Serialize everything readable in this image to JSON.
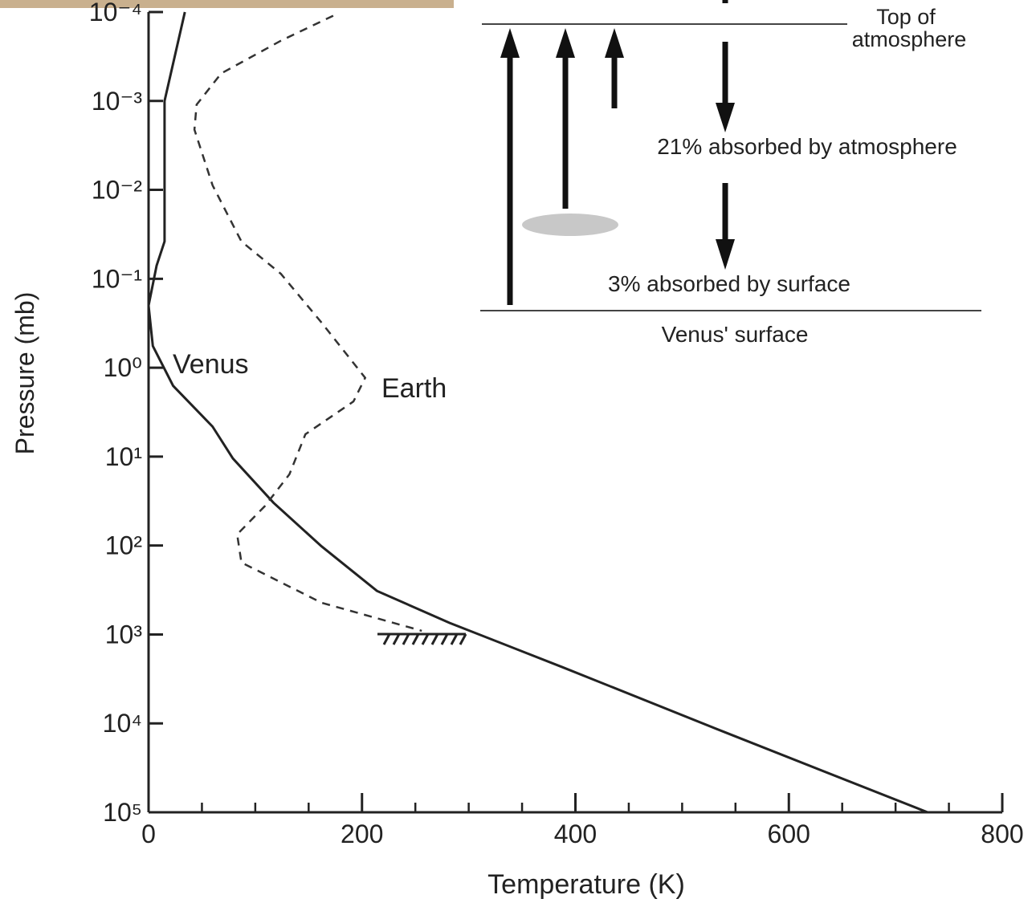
{
  "chart_data": {
    "type": "line",
    "xlabel": "Temperature (K)",
    "ylabel": "Pressure (mb)",
    "xlim": [
      0,
      800
    ],
    "xticks": [
      0,
      200,
      400,
      600,
      800
    ],
    "xminorticks": [
      50,
      100,
      150,
      250,
      300,
      350,
      450,
      500,
      550,
      650,
      700,
      750
    ],
    "ylim": [
      0.0001,
      100000
    ],
    "yscale": "log",
    "yinverted": true,
    "yticks": [
      {
        "value": 0.0001,
        "label": "10⁻⁴"
      },
      {
        "value": 0.001,
        "label": "10⁻³"
      },
      {
        "value": 0.01,
        "label": "10⁻²"
      },
      {
        "value": 0.1,
        "label": "10⁻¹"
      },
      {
        "value": 1,
        "label": "10⁰"
      },
      {
        "value": 10,
        "label": "10¹"
      },
      {
        "value": 100,
        "label": "10²"
      },
      {
        "value": 1000,
        "label": "10³"
      },
      {
        "value": 10000,
        "label": "10⁴"
      },
      {
        "value": 100000,
        "label": "10⁵"
      }
    ],
    "series": [
      {
        "name": "Venus",
        "color": "#222222",
        "dashed": false,
        "x": [
          34,
          15,
          15,
          15,
          7.5,
          0,
          4,
          23,
          60,
          79,
          117,
          162,
          214,
          282,
          388,
          538,
          730
        ],
        "values": [
          0.0001,
          0.001,
          0.01,
          0.038,
          0.071,
          0.2,
          0.57,
          1.6,
          4.6,
          10.5,
          33,
          102,
          324,
          740,
          2340,
          12300,
          100000
        ]
      },
      {
        "name": "Earth",
        "color": "#333333",
        "dashed": true,
        "x": [
          173,
          124,
          68,
          45,
          43,
          60,
          87,
          124,
          162,
          203,
          192,
          147,
          132,
          109,
          83,
          87,
          162,
          256
        ],
        "values": [
          0.00011,
          0.00021,
          0.00049,
          0.0011,
          0.0021,
          0.0089,
          0.038,
          0.088,
          0.31,
          1.3,
          2.4,
          5.6,
          15.8,
          36,
          75,
          155,
          440,
          910
        ]
      }
    ]
  },
  "diagram": {
    "top_label": "Top of\natmosphere",
    "atmosphere_label": "21% absorbed by atmosphere",
    "surface_absorbed_label": "3% absorbed by surface",
    "surface_label": "Venus' surface"
  }
}
